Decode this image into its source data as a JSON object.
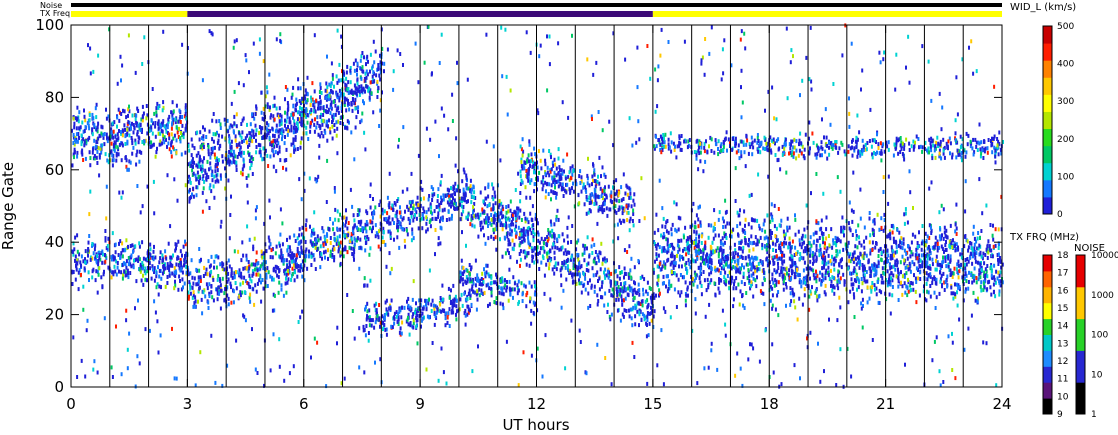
{
  "chart_data": {
    "type": "heatmap",
    "xlabel": "UT hours",
    "ylabel": "Range Gate",
    "xlim": [
      0,
      24
    ],
    "ylim": [
      0,
      100
    ],
    "x_ticks": [
      "0",
      "3",
      "6",
      "9",
      "12",
      "15",
      "18",
      "21",
      "24"
    ],
    "y_ticks": [
      "0",
      "20",
      "40",
      "60",
      "80",
      "100"
    ],
    "vertical_markers_ut": [
      1,
      2,
      3,
      4,
      5,
      6,
      7,
      8,
      9,
      10,
      11,
      12,
      13,
      14,
      15,
      16,
      17,
      18,
      19,
      20,
      21,
      22,
      23
    ],
    "indicator_rows": {
      "noise_label": "Noise",
      "txfreq_label": "TX Freq",
      "txfreq_segments": [
        {
          "start": 0,
          "end": 3,
          "color": "#ffff00"
        },
        {
          "start": 3,
          "end": 15,
          "color": "#3c0a78"
        },
        {
          "start": 15,
          "end": 24,
          "color": "#ffff00"
        }
      ]
    },
    "echo_bands": [
      {
        "start": 0,
        "end": 3,
        "center_start": 35,
        "center_end": 34,
        "width": 8
      },
      {
        "start": 3,
        "end": 6,
        "center_start": 26,
        "center_end": 36,
        "width": 9
      },
      {
        "start": 6,
        "end": 10,
        "center_start": 38,
        "center_end": 52,
        "width": 8
      },
      {
        "start": 10,
        "end": 15,
        "center_start": 52,
        "center_end": 22,
        "width": 10
      },
      {
        "start": 15,
        "end": 24,
        "center_start": 36,
        "center_end": 34,
        "width": 14
      },
      {
        "start": 0,
        "end": 3,
        "center_start": 68,
        "center_end": 72,
        "width": 10
      },
      {
        "start": 3,
        "end": 8,
        "center_start": 60,
        "center_end": 85,
        "width": 12
      },
      {
        "start": 7.5,
        "end": 10.3,
        "center_start": 18,
        "center_end": 23,
        "width": 6
      },
      {
        "start": 10,
        "end": 12,
        "center_start": 30,
        "center_end": 25,
        "width": 6
      },
      {
        "start": 11.5,
        "end": 14.5,
        "center_start": 62,
        "center_end": 50,
        "width": 8
      },
      {
        "start": 15,
        "end": 24,
        "center_start": 67,
        "center_end": 66,
        "width": 4
      }
    ],
    "colorbar_width": {
      "title": "WID_L (km/s)",
      "ticks": [
        "0",
        "100",
        "200",
        "300",
        "400",
        "500"
      ],
      "colors": [
        "#1f1fd8",
        "#1478ff",
        "#00d2d2",
        "#00c864",
        "#28dc1e",
        "#b4e600",
        "#ffff00",
        "#ffc800",
        "#ff8200",
        "#ff1e00",
        "#c80000"
      ]
    },
    "colorbar_txfreq": {
      "title": "TX FRQ (MHz)",
      "ticks": [
        "9",
        "10",
        "11",
        "12",
        "13",
        "14",
        "15",
        "16",
        "17",
        "18"
      ],
      "colors": [
        "#000000",
        "#5a147a",
        "#2828d2",
        "#1e8cff",
        "#00c8c8",
        "#28d228",
        "#ffff00",
        "#ffb400",
        "#ff6400",
        "#e60000"
      ]
    },
    "colorbar_noise": {
      "title": "NOISE",
      "ticks": [
        "1",
        "10",
        "100",
        "1000",
        "10000"
      ],
      "colors": [
        "#000000",
        "#2828d2",
        "#28d228",
        "#ffc800",
        "#e60000"
      ]
    }
  }
}
